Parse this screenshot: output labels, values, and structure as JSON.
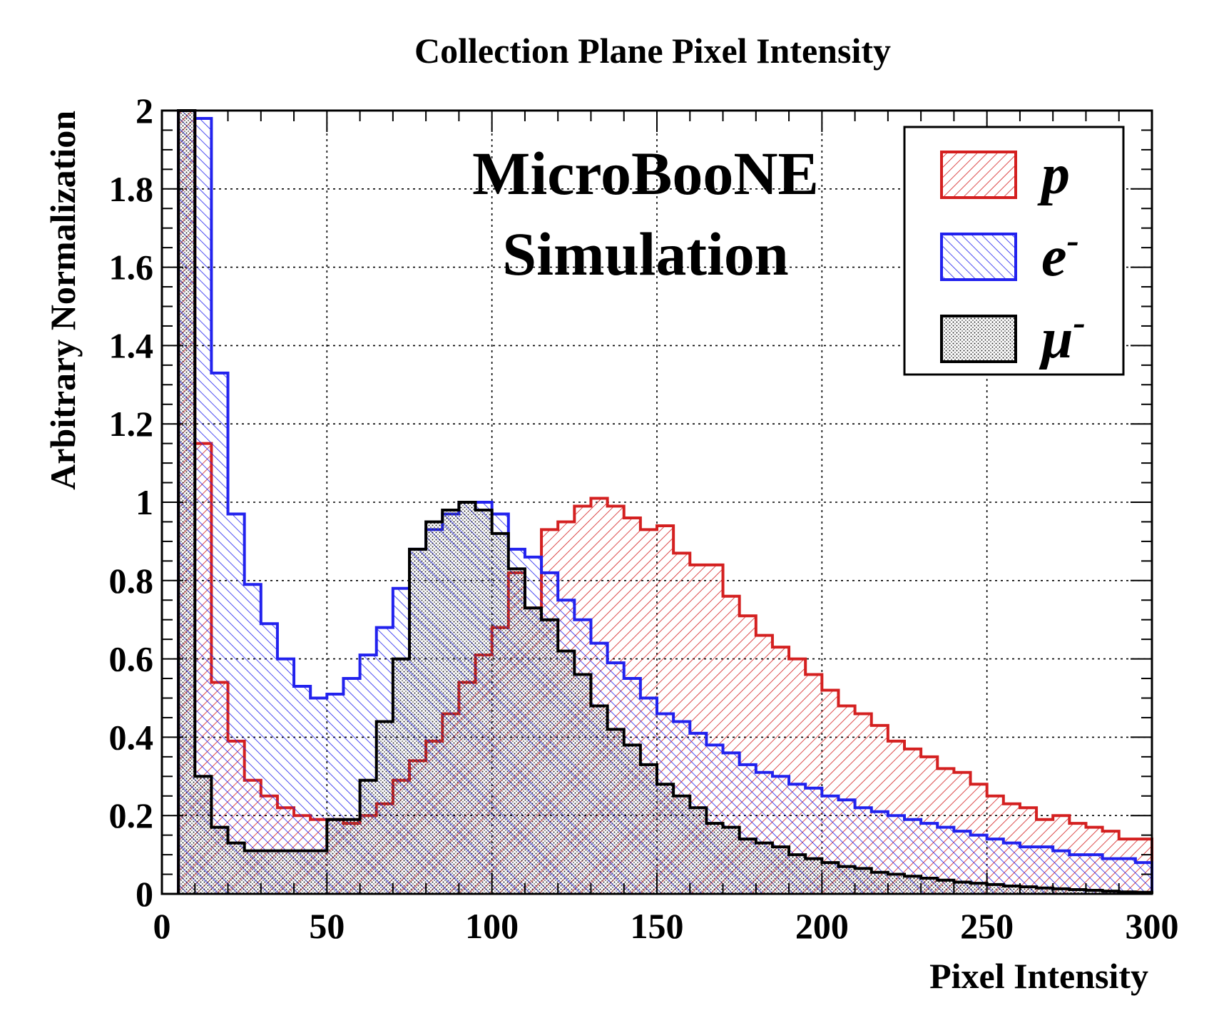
{
  "chart_data": {
    "type": "histogram",
    "title": "Collection Plane Pixel Intensity",
    "xlabel": "Pixel Intensity",
    "ylabel": "Arbitrary Normalization",
    "xlim": [
      0,
      300
    ],
    "ylim": [
      0,
      2
    ],
    "grid": true,
    "legend_position": "top-right",
    "annotation": [
      "MicroBooNE",
      "Simulation"
    ],
    "x_ticks": [
      "0",
      "50",
      "100",
      "150",
      "200",
      "250",
      "300"
    ],
    "y_ticks": [
      "0",
      "0.2",
      "0.4",
      "0.6",
      "0.8",
      "1",
      "1.2",
      "1.4",
      "1.6",
      "1.8",
      "2"
    ],
    "bin_edges": [
      5,
      10,
      15,
      20,
      25,
      30,
      35,
      40,
      45,
      50,
      55,
      60,
      65,
      70,
      75,
      80,
      85,
      90,
      95,
      100,
      105,
      110,
      115,
      120,
      125,
      130,
      135,
      140,
      145,
      150,
      155,
      160,
      165,
      170,
      175,
      180,
      185,
      190,
      195,
      200,
      205,
      210,
      215,
      220,
      225,
      230,
      235,
      240,
      245,
      250,
      255,
      260,
      265,
      270,
      275,
      280,
      285,
      290,
      295,
      300
    ],
    "series": [
      {
        "name": "p",
        "label_main": "p",
        "label_sup": "",
        "color": "#d42020",
        "values": [
          2.0,
          1.15,
          0.54,
          0.39,
          0.29,
          0.25,
          0.22,
          0.2,
          0.19,
          0.19,
          0.18,
          0.2,
          0.23,
          0.29,
          0.34,
          0.39,
          0.46,
          0.54,
          0.61,
          0.68,
          0.82,
          0.73,
          0.93,
          0.95,
          0.99,
          1.01,
          0.99,
          0.96,
          0.93,
          0.94,
          0.87,
          0.84,
          0.84,
          0.76,
          0.71,
          0.66,
          0.63,
          0.6,
          0.56,
          0.52,
          0.48,
          0.46,
          0.43,
          0.39,
          0.37,
          0.35,
          0.32,
          0.31,
          0.28,
          0.25,
          0.23,
          0.22,
          0.19,
          0.2,
          0.18,
          0.17,
          0.16,
          0.14,
          0.14
        ]
      },
      {
        "name": "e-",
        "label_main": "e",
        "label_sup": "-",
        "color": "#2222ee",
        "values": [
          2.0,
          1.98,
          1.33,
          0.97,
          0.79,
          0.69,
          0.6,
          0.53,
          0.5,
          0.51,
          0.55,
          0.61,
          0.68,
          0.78,
          0.88,
          0.93,
          0.97,
          1.0,
          1.0,
          0.97,
          0.88,
          0.86,
          0.82,
          0.75,
          0.7,
          0.64,
          0.59,
          0.55,
          0.5,
          0.46,
          0.44,
          0.41,
          0.38,
          0.36,
          0.33,
          0.31,
          0.3,
          0.28,
          0.27,
          0.25,
          0.24,
          0.22,
          0.21,
          0.2,
          0.19,
          0.18,
          0.17,
          0.16,
          0.15,
          0.14,
          0.13,
          0.12,
          0.12,
          0.11,
          0.1,
          0.1,
          0.09,
          0.09,
          0.08
        ]
      },
      {
        "name": "mu-",
        "label_main": "μ",
        "label_sup": "-",
        "color": "#000000",
        "values": [
          2.0,
          0.3,
          0.17,
          0.13,
          0.11,
          0.11,
          0.11,
          0.11,
          0.11,
          0.19,
          0.19,
          0.29,
          0.44,
          0.6,
          0.88,
          0.95,
          0.98,
          1.0,
          0.98,
          0.92,
          0.83,
          0.73,
          0.7,
          0.62,
          0.56,
          0.48,
          0.42,
          0.38,
          0.33,
          0.28,
          0.25,
          0.22,
          0.18,
          0.17,
          0.14,
          0.13,
          0.12,
          0.1,
          0.09,
          0.08,
          0.07,
          0.065,
          0.055,
          0.05,
          0.045,
          0.04,
          0.035,
          0.03,
          0.027,
          0.024,
          0.02,
          0.018,
          0.015,
          0.013,
          0.011,
          0.009,
          0.007,
          0.005,
          0.004
        ]
      }
    ]
  }
}
